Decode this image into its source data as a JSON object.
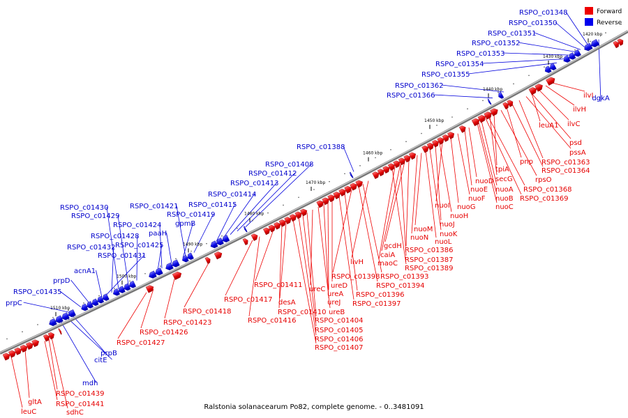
{
  "legend": {
    "forward_label": "Forward",
    "reverse_label": "Reverse",
    "forward_color": "#ee0000",
    "reverse_color": "#0000ee"
  },
  "caption": "Ralstonia solanacearum Po82, complete genome. - 0..3481091",
  "ticks": [
    "1420 kbp",
    "1430 kbp",
    "1440 kbp",
    "1450 kbp",
    "1460 kbp",
    "1470 kbp",
    "1480 kbp",
    "1490 kbp",
    "1500 kbp",
    "1510 kbp"
  ],
  "reverse_genes": [
    "RSPO_c01348",
    "RSPO_c01350",
    "RSPO_c01351",
    "RSPO_c01352",
    "RSPO_c01353",
    "RSPO_c01354",
    "RSPO_c01355",
    "RSPO_c01362",
    "RSPO_c01366",
    "RSPO_c01388",
    "RSPO_c01408",
    "RSPO_c01412",
    "RSPO_c01413",
    "RSPO_c01414",
    "RSPO_c01415",
    "RSPO_c01419",
    "RSPO_c01421",
    "gpmB",
    "paaH",
    "RSPO_c01424",
    "RSPO_c01425",
    "RSPO_c01428",
    "RSPO_c01429",
    "RSPO_c01430",
    "RSPO_c01432",
    "RSPO_c01431",
    "acnA1",
    "prpD",
    "RSPO_c01435",
    "prpC",
    "dgkA",
    "prpB",
    "citE",
    "mdh"
  ],
  "forward_genes": [
    "ilvI",
    "ilvH",
    "ilvC",
    "leuA1",
    "psd",
    "pssA",
    "RSPO_c01363",
    "RSPO_c01364",
    "pnp",
    "rpsO",
    "tpiA",
    "secG",
    "RSPO_c01368",
    "RSPO_c01369",
    "nuoD",
    "nuoE",
    "nuoA",
    "nuoB",
    "nuoC",
    "nuoF",
    "nuoG",
    "nuoI",
    "nuoH",
    "nuoJ",
    "nuoK",
    "nuoL",
    "nuoM",
    "nuoN",
    "gcdH",
    "caiA",
    "maoC",
    "RSPO_c01386",
    "RSPO_c01387",
    "RSPO_c01389",
    "livH",
    "RSPO_c01393",
    "RSPO_c01394",
    "RSPO_c01398",
    "RSPO_c01396",
    "RSPO_c01397",
    "ureD",
    "ureA",
    "ureJ",
    "ureB",
    "ureC",
    "RSPO_c01404",
    "RSPO_c01405",
    "RSPO_c01406",
    "RSPO_c01407",
    "desA",
    "RSPO_c01410",
    "RSPO_c01411",
    "RSPO_c01416",
    "RSPO_c01417",
    "RSPO_c01418",
    "RSPO_c01423",
    "RSPO_c01426",
    "RSPO_c01427",
    "RSPO_c01439",
    "RSPO_c01441",
    "gltA",
    "leuC",
    "sdhC"
  ]
}
